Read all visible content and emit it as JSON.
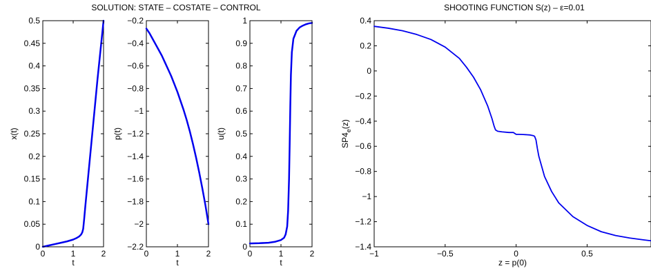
{
  "figure": {
    "left_title": "SOLUTION: STATE – COSTATE – CONTROL",
    "right_title": "SHOOTING FUNCTION S(z) – ε=0.01"
  },
  "chart_data": [
    {
      "type": "line",
      "title": "",
      "xlabel": "t",
      "ylabel": "x(t)",
      "xlim": [
        0,
        2
      ],
      "ylim": [
        0,
        0.5
      ],
      "xticks": [
        0,
        1,
        2
      ],
      "xtick_labels": [
        "0",
        "1",
        "2"
      ],
      "yticks": [
        0,
        0.05,
        0.1,
        0.15,
        0.2,
        0.25,
        0.3,
        0.35,
        0.4,
        0.45,
        0.5
      ],
      "ytick_labels": [
        "0",
        "0.05",
        "0.1",
        "0.15",
        "0.2",
        "0.25",
        "0.3",
        "0.35",
        "0.4",
        "0.45",
        "0.5"
      ],
      "grid": false,
      "line_width": 2.5,
      "series": [
        {
          "color": "#0000ee",
          "x": [
            0,
            0.2,
            0.4,
            0.6,
            0.8,
            1.0,
            1.1,
            1.2,
            1.26,
            1.3,
            1.33,
            1.36,
            1.4,
            1.5,
            1.6,
            1.7,
            1.8,
            1.9,
            2.0
          ],
          "y": [
            0,
            0.003,
            0.006,
            0.009,
            0.012,
            0.016,
            0.019,
            0.023,
            0.027,
            0.032,
            0.04,
            0.06,
            0.09,
            0.16,
            0.23,
            0.3,
            0.37,
            0.435,
            0.5
          ]
        }
      ]
    },
    {
      "type": "line",
      "title": "",
      "xlabel": "t",
      "ylabel": "p(t)",
      "xlim": [
        0,
        2
      ],
      "ylim": [
        -2.2,
        -0.2
      ],
      "xticks": [
        0,
        1,
        2
      ],
      "xtick_labels": [
        "0",
        "1",
        "2"
      ],
      "yticks": [
        -2.2,
        -2,
        -1.8,
        -1.6,
        -1.4,
        -1.2,
        -1,
        -0.8,
        -0.6,
        -0.4,
        -0.2
      ],
      "ytick_labels": [
        "−2.2",
        "−2",
        "−1.8",
        "−1.6",
        "−1.4",
        "−1.2",
        "−1",
        "−0.8",
        "−0.6",
        "−0.4",
        "−0.2"
      ],
      "grid": false,
      "line_width": 2.5,
      "series": [
        {
          "color": "#0000ee",
          "x": [
            0,
            0.1,
            0.2,
            0.3,
            0.4,
            0.5,
            0.6,
            0.7,
            0.8,
            0.9,
            1.0,
            1.1,
            1.2,
            1.3,
            1.4,
            1.5,
            1.6,
            1.7,
            1.8,
            1.9,
            2.0
          ],
          "y": [
            -0.27,
            -0.31,
            -0.36,
            -0.41,
            -0.46,
            -0.51,
            -0.57,
            -0.63,
            -0.69,
            -0.76,
            -0.83,
            -0.91,
            -0.99,
            -1.08,
            -1.18,
            -1.29,
            -1.41,
            -1.54,
            -1.68,
            -1.83,
            -2.0
          ]
        }
      ]
    },
    {
      "type": "line",
      "title": "",
      "xlabel": "t",
      "ylabel": "u(t)",
      "xlim": [
        0,
        2
      ],
      "ylim": [
        0,
        1
      ],
      "xticks": [
        0,
        1,
        2
      ],
      "xtick_labels": [
        "0",
        "1",
        "2"
      ],
      "yticks": [
        0,
        0.1,
        0.2,
        0.3,
        0.4,
        0.5,
        0.6,
        0.7,
        0.8,
        0.9,
        1
      ],
      "ytick_labels": [
        "0",
        "0.1",
        "0.2",
        "0.3",
        "0.4",
        "0.5",
        "0.6",
        "0.7",
        "0.8",
        "0.9",
        "1"
      ],
      "grid": false,
      "line_width": 2.5,
      "series": [
        {
          "color": "#0000ee",
          "x": [
            0,
            0.3,
            0.6,
            0.8,
            1.0,
            1.1,
            1.15,
            1.2,
            1.23,
            1.26,
            1.28,
            1.3,
            1.32,
            1.35,
            1.4,
            1.5,
            1.6,
            1.7,
            1.8,
            1.9,
            2.0
          ],
          "y": [
            0.015,
            0.016,
            0.018,
            0.022,
            0.03,
            0.04,
            0.055,
            0.09,
            0.16,
            0.3,
            0.45,
            0.62,
            0.76,
            0.86,
            0.92,
            0.955,
            0.97,
            0.978,
            0.984,
            0.988,
            0.99
          ]
        }
      ]
    },
    {
      "type": "line",
      "title": "",
      "xlabel": "z = p(0)",
      "ylabel": "SP4",
      "ylabel_sub": "e",
      "ylabel_suffix": "(z)",
      "xlim": [
        -1,
        0.95
      ],
      "ylim": [
        -1.4,
        0.4
      ],
      "xticks": [
        -1,
        -0.5,
        0,
        0.5
      ],
      "xtick_labels": [
        "−1",
        "−0.5",
        "0",
        "0.5"
      ],
      "yticks": [
        -1.4,
        -1.2,
        -1,
        -0.8,
        -0.6,
        -0.4,
        -0.2,
        0,
        0.2,
        0.4
      ],
      "ytick_labels": [
        "−1.4",
        "−1.2",
        "−1",
        "−0.8",
        "−0.6",
        "−0.4",
        "−0.2",
        "0",
        "0.2",
        "0.4"
      ],
      "grid": false,
      "line_width": 1.8,
      "series": [
        {
          "color": "#0000ee",
          "x": [
            -1.0,
            -0.9,
            -0.8,
            -0.7,
            -0.6,
            -0.5,
            -0.4,
            -0.35,
            -0.3,
            -0.25,
            -0.2,
            -0.17,
            -0.155,
            -0.145,
            -0.13,
            -0.1,
            -0.05,
            -0.02,
            0.0,
            0.02,
            0.05,
            0.1,
            0.12,
            0.13,
            0.14,
            0.15,
            0.16,
            0.18,
            0.2,
            0.25,
            0.3,
            0.4,
            0.5,
            0.6,
            0.7,
            0.8,
            0.9,
            0.95
          ],
          "y": [
            0.355,
            0.34,
            0.32,
            0.29,
            0.25,
            0.19,
            0.1,
            0.03,
            -0.05,
            -0.15,
            -0.28,
            -0.38,
            -0.44,
            -0.47,
            -0.48,
            -0.485,
            -0.49,
            -0.49,
            -0.505,
            -0.505,
            -0.506,
            -0.51,
            -0.515,
            -0.52,
            -0.55,
            -0.62,
            -0.68,
            -0.76,
            -0.84,
            -0.96,
            -1.05,
            -1.16,
            -1.23,
            -1.28,
            -1.31,
            -1.33,
            -1.345,
            -1.352
          ]
        }
      ]
    }
  ]
}
